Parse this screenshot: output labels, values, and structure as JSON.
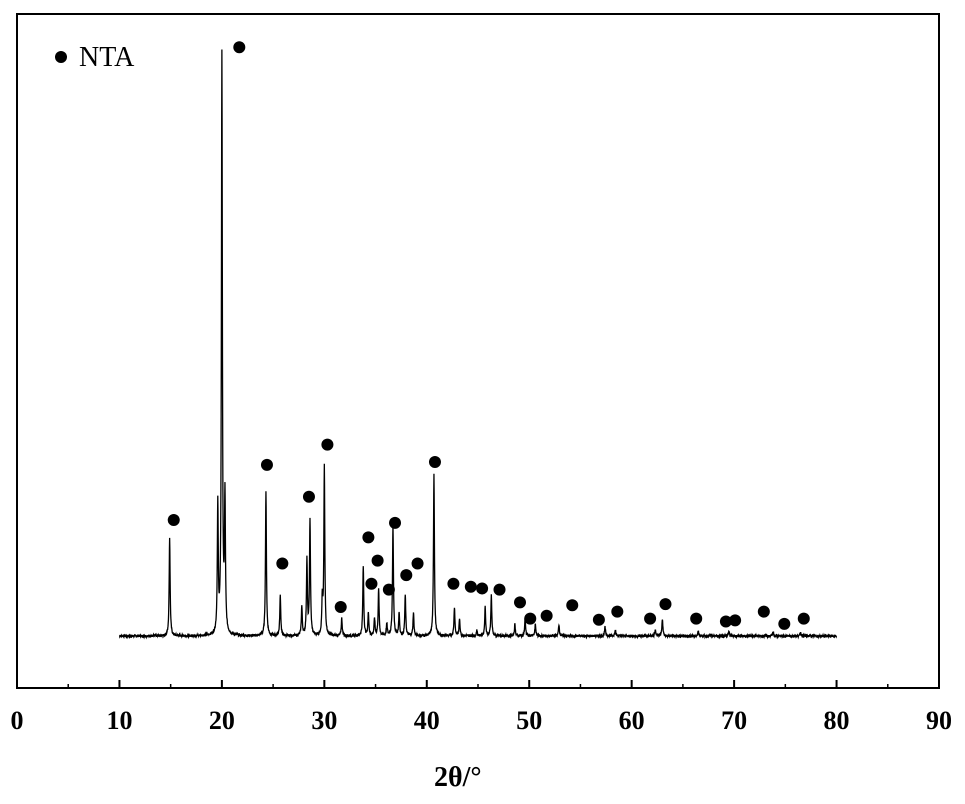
{
  "chart_data": {
    "type": "line",
    "xlabel": "2θ/°",
    "ylabel": "",
    "xlim": [
      0,
      90
    ],
    "x_ticks": [
      0,
      10,
      20,
      30,
      40,
      50,
      60,
      70,
      80,
      90
    ],
    "y_ticks_shown": false,
    "grid": false,
    "legend": {
      "position": "top-left",
      "marker": "filled-circle",
      "label": "NTA"
    },
    "legend_label": "NTA",
    "x_start": 10,
    "x_end": 80,
    "baseline": 0,
    "ylim": [
      -8,
      100
    ],
    "peaks": [
      {
        "x": 14.9,
        "y": 17
      },
      {
        "x": 19.6,
        "y": 22
      },
      {
        "x": 20.0,
        "y": 100
      },
      {
        "x": 20.3,
        "y": 23
      },
      {
        "x": 24.3,
        "y": 25
      },
      {
        "x": 25.7,
        "y": 7
      },
      {
        "x": 27.8,
        "y": 5
      },
      {
        "x": 28.3,
        "y": 13
      },
      {
        "x": 28.6,
        "y": 20
      },
      {
        "x": 29.8,
        "y": 6
      },
      {
        "x": 30.0,
        "y": 29
      },
      {
        "x": 31.7,
        "y": 3
      },
      {
        "x": 33.8,
        "y": 12
      },
      {
        "x": 34.3,
        "y": 4
      },
      {
        "x": 34.9,
        "y": 3
      },
      {
        "x": 35.3,
        "y": 8
      },
      {
        "x": 36.1,
        "y": 2
      },
      {
        "x": 36.7,
        "y": 19
      },
      {
        "x": 37.3,
        "y": 4
      },
      {
        "x": 37.9,
        "y": 7
      },
      {
        "x": 38.7,
        "y": 4
      },
      {
        "x": 40.7,
        "y": 28
      },
      {
        "x": 42.7,
        "y": 5
      },
      {
        "x": 43.2,
        "y": 3
      },
      {
        "x": 44.9,
        "y": 1
      },
      {
        "x": 45.7,
        "y": 5
      },
      {
        "x": 46.3,
        "y": 7
      },
      {
        "x": 48.6,
        "y": 2
      },
      {
        "x": 49.6,
        "y": 3
      },
      {
        "x": 50.6,
        "y": 2
      },
      {
        "x": 52.9,
        "y": 2
      },
      {
        "x": 57.4,
        "y": 1.5
      },
      {
        "x": 58.4,
        "y": 1.2
      },
      {
        "x": 62.3,
        "y": 1
      },
      {
        "x": 63.0,
        "y": 3
      },
      {
        "x": 66.5,
        "y": 0.8
      },
      {
        "x": 69.5,
        "y": 0.8
      },
      {
        "x": 73.8,
        "y": 0.6
      },
      {
        "x": 76.5,
        "y": 0.6
      }
    ],
    "markers": [
      {
        "x": 15.3,
        "y": 20
      },
      {
        "x": 21.7,
        "y": 101.5
      },
      {
        "x": 24.4,
        "y": 29.5
      },
      {
        "x": 25.9,
        "y": 12.5
      },
      {
        "x": 28.5,
        "y": 24
      },
      {
        "x": 30.3,
        "y": 33
      },
      {
        "x": 31.6,
        "y": 5
      },
      {
        "x": 34.3,
        "y": 17
      },
      {
        "x": 34.6,
        "y": 9
      },
      {
        "x": 35.2,
        "y": 13
      },
      {
        "x": 36.3,
        "y": 8
      },
      {
        "x": 36.9,
        "y": 19.5
      },
      {
        "x": 38.0,
        "y": 10.5
      },
      {
        "x": 39.1,
        "y": 12.5
      },
      {
        "x": 40.8,
        "y": 30
      },
      {
        "x": 42.6,
        "y": 9
      },
      {
        "x": 44.3,
        "y": 8.5
      },
      {
        "x": 45.4,
        "y": 8.2
      },
      {
        "x": 47.1,
        "y": 8
      },
      {
        "x": 49.1,
        "y": 5.8
      },
      {
        "x": 50.1,
        "y": 3
      },
      {
        "x": 51.7,
        "y": 3.5
      },
      {
        "x": 54.2,
        "y": 5.3
      },
      {
        "x": 56.8,
        "y": 2.8
      },
      {
        "x": 58.6,
        "y": 4.2
      },
      {
        "x": 61.8,
        "y": 3
      },
      {
        "x": 63.3,
        "y": 5.5
      },
      {
        "x": 66.3,
        "y": 3
      },
      {
        "x": 69.2,
        "y": 2.5
      },
      {
        "x": 70.1,
        "y": 2.7
      },
      {
        "x": 72.9,
        "y": 4.2
      },
      {
        "x": 74.9,
        "y": 2.1
      },
      {
        "x": 76.8,
        "y": 3
      }
    ]
  }
}
